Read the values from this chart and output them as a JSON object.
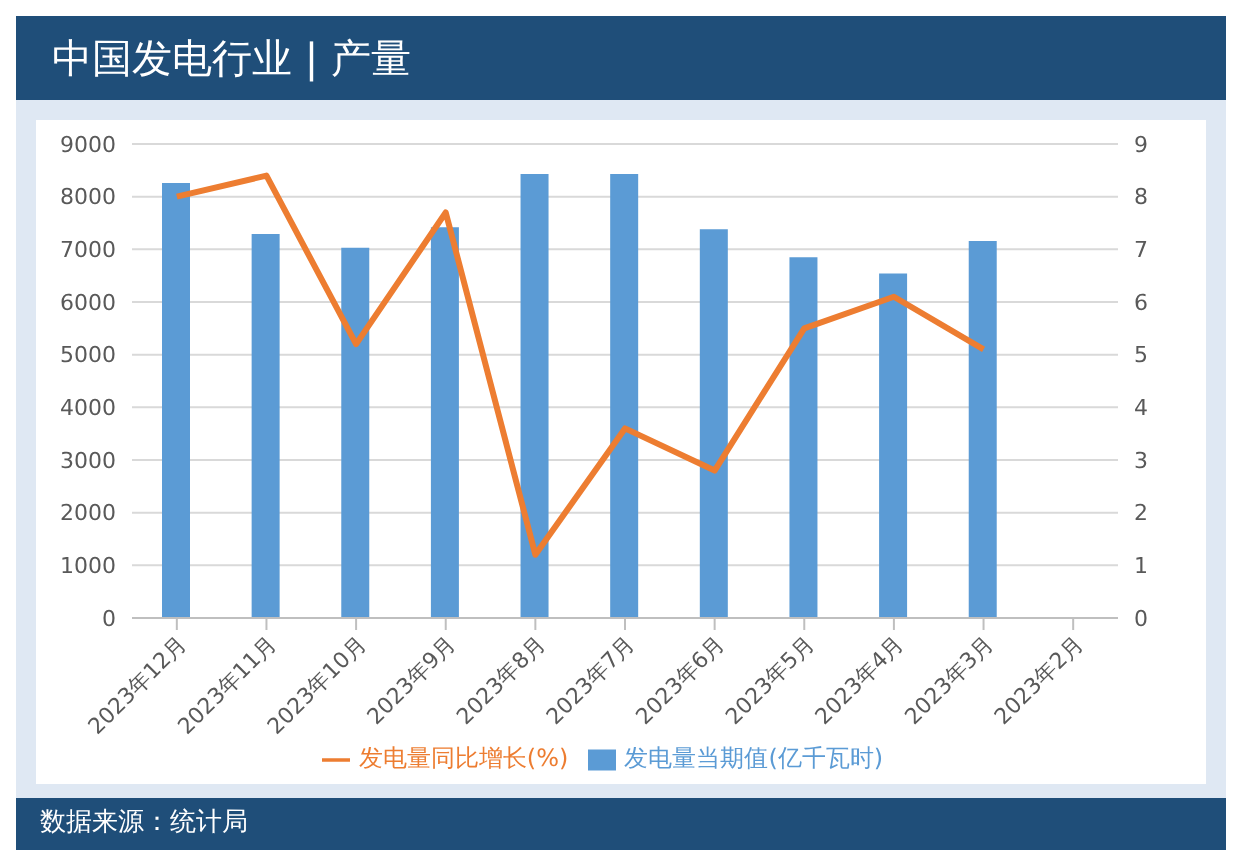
{
  "chart_data": {
    "type": "bar",
    "title": "中国发电行业 | 产量",
    "categories": [
      "2023年12月",
      "2023年11月",
      "2023年10月",
      "2023年9月",
      "2023年8月",
      "2023年7月",
      "2023年6月",
      "2023年5月",
      "2023年4月",
      "2023年3月",
      "2023年2月"
    ],
    "series": [
      {
        "name": "发电量当期值(亿千瓦时)",
        "color": "#5b9bd5",
        "values": [
          8260,
          7290,
          7030,
          7420,
          8430,
          8430,
          7380,
          6850,
          6540,
          7160,
          null
        ]
      },
      {
        "name": "发电量同比增长(%)",
        "type": "line",
        "axis": "y2",
        "color": "#ed7d31",
        "values": [
          8.0,
          8.4,
          5.2,
          7.7,
          1.2,
          3.6,
          2.8,
          5.5,
          6.1,
          5.1,
          null
        ]
      }
    ],
    "ylim": [
      0,
      9000
    ],
    "yticks": [
      0,
      1000,
      2000,
      3000,
      4000,
      5000,
      6000,
      7000,
      8000,
      9000
    ],
    "y2lim": [
      0,
      9
    ],
    "y2ticks": [
      0,
      1,
      2,
      3,
      4,
      5,
      6,
      7,
      8,
      9
    ],
    "grid": "y",
    "legend": "bottom",
    "marker": "none",
    "annotations": [
      "数据来源：统计局"
    ]
  }
}
